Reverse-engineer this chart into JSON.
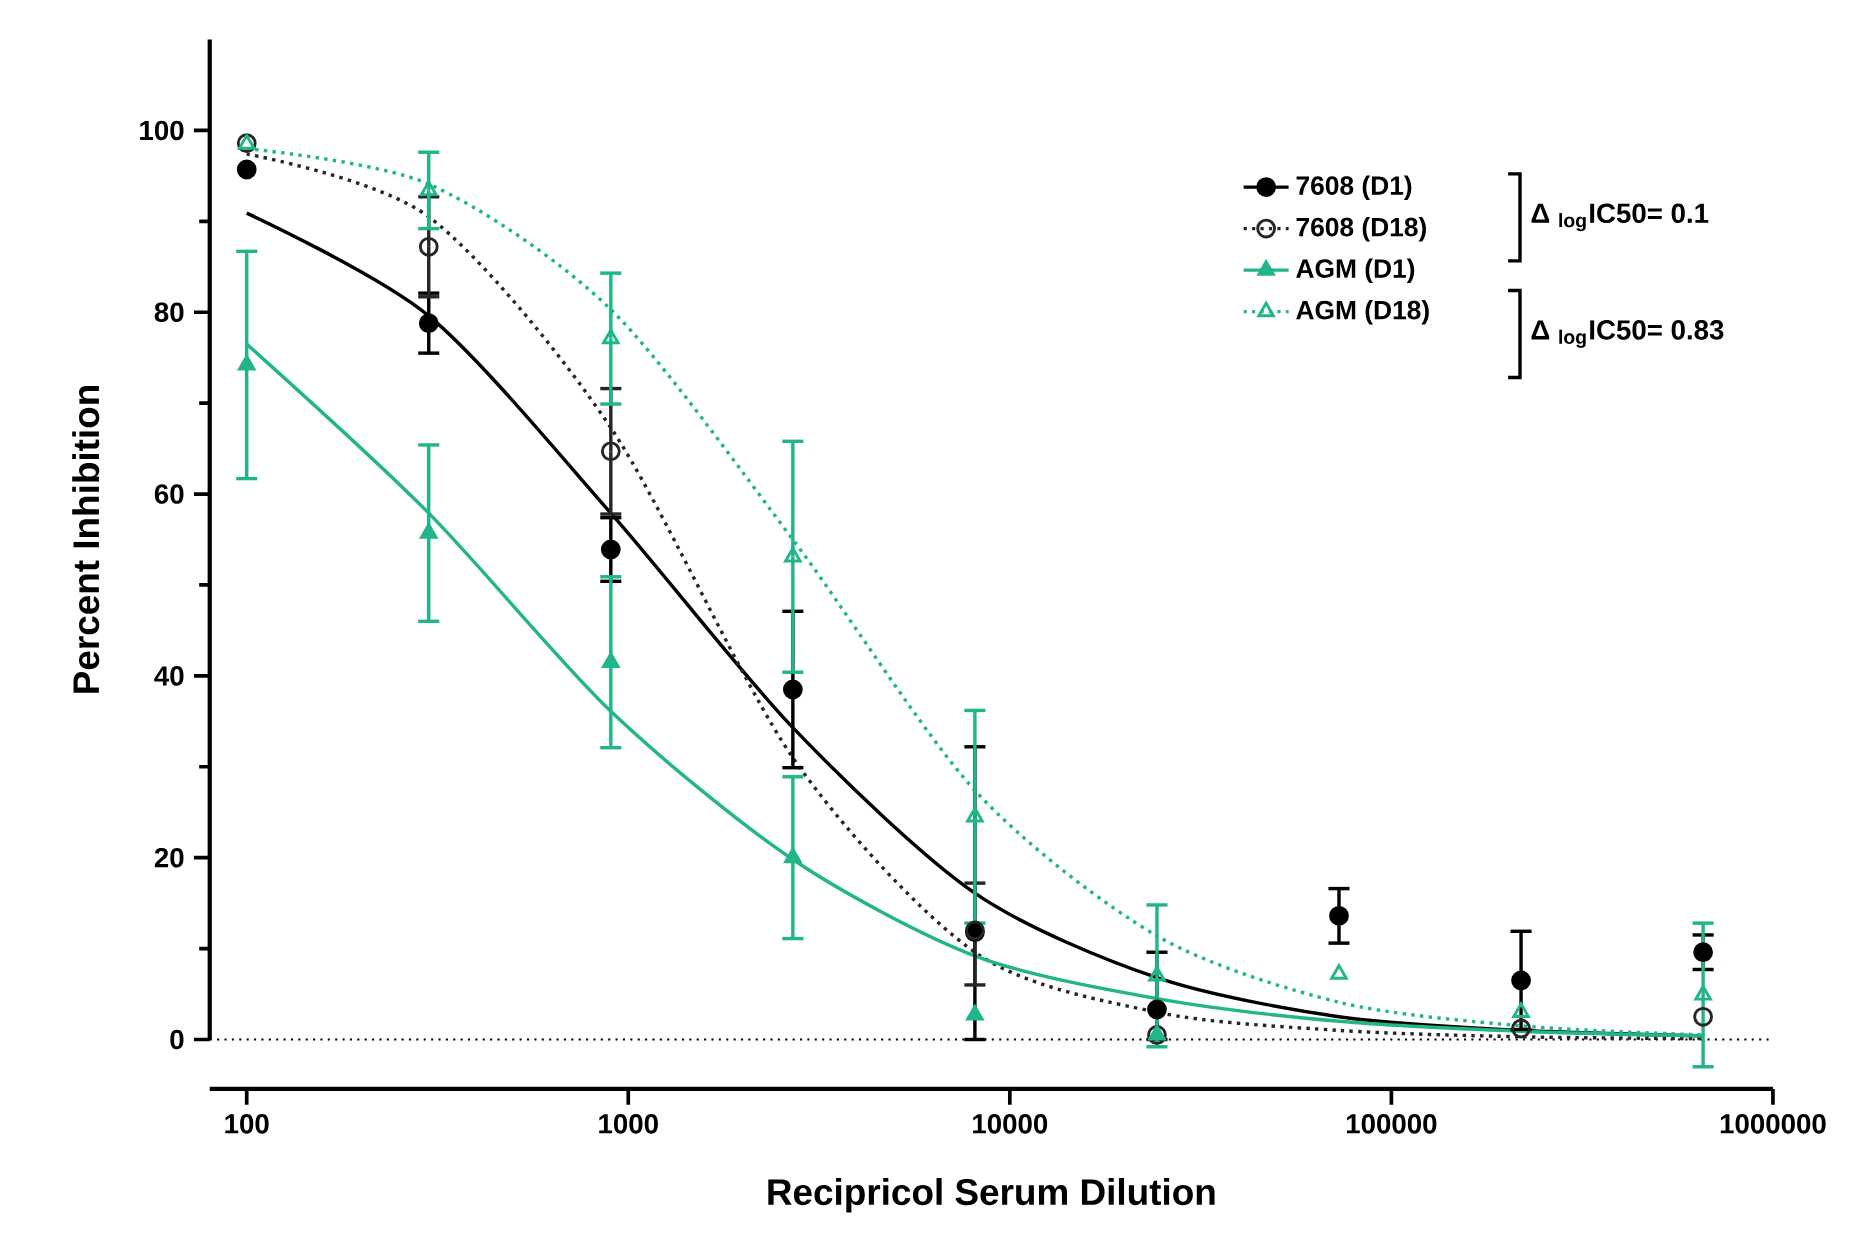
{
  "chart_data": {
    "type": "scatter",
    "xlabel": "Recipricol Serum Dilution",
    "ylabel": "Percent Inhibition",
    "x": [
      100,
      300,
      900,
      2700,
      8100,
      24300,
      72900,
      218700,
      656100
    ],
    "log": "x",
    "xlim": [
      80,
      1000000
    ],
    "xticks": [
      100,
      1000,
      10000,
      100000,
      1000000
    ],
    "ylim": [
      0,
      110
    ],
    "yticks": [
      0,
      20,
      40,
      60,
      80,
      100
    ],
    "legend": "top right",
    "ref_lines": [
      {
        "axis": "y",
        "value": 0,
        "color": "#000000",
        "line_style": "dotted"
      }
    ],
    "annotations": [
      "Δ $_{log}$IC50= 0.1",
      "Δ $_{log}$IC50= 0.83"
    ],
    "series": [
      {
        "name": "7608 (D1)",
        "color": "#000000",
        "marker": "circle",
        "line_style": "solid",
        "values": [
          95.7,
          78.8,
          53.9,
          38.5,
          11.8,
          3.3,
          13.6,
          6.5,
          9.6
        ],
        "errors": [
          null,
          3.3,
          3.5,
          8.6,
          [
            0,
            32.2
          ],
          [
            0,
            9.6
          ],
          3.0,
          5.4,
          1.9
        ]
      },
      {
        "name": "7608 (D18)",
        "color": "#262626",
        "marker": "circle-open",
        "line_style": "dotted",
        "values": [
          98.6,
          87.2,
          64.7,
          null,
          12.0,
          0.5,
          null,
          1.2,
          2.5
        ],
        "errors": [
          null,
          5.5,
          6.9,
          null,
          [
            6.0,
            17.2
          ],
          null,
          null,
          null,
          null
        ]
      },
      {
        "name": "AGM (D1)",
        "color": "#20b58a",
        "marker": "triangle",
        "line_style": "solid",
        "values": [
          74.2,
          55.7,
          41.5,
          20.0,
          2.7,
          0.5,
          null,
          null,
          null
        ],
        "errors": [
          12.5,
          9.7,
          9.4,
          8.9,
          null,
          null,
          null,
          null,
          null
        ]
      },
      {
        "name": "AGM (D18)",
        "color": "#20b58a",
        "marker": "triangle-open",
        "line_style": "dotted",
        "values": [
          98.5,
          93.4,
          77.1,
          53.1,
          24.5,
          7.0,
          7.2,
          3.0,
          4.9
        ],
        "errors": [
          null,
          4.2,
          7.2,
          12.7,
          11.7,
          7.8,
          null,
          null,
          7.9
        ]
      },
      {
        "type": "line",
        "color": "#000000",
        "line_style": "solid",
        "x": [
          100,
          300,
          900,
          2700,
          8100,
          24300,
          72900,
          218700,
          656100
        ],
        "values": [
          90.9,
          79.6,
          57.9,
          34.3,
          16.1,
          6.8,
          2.5,
          1.0,
          0.4
        ]
      },
      {
        "type": "line",
        "color": "#262626",
        "line_style": "dotted",
        "x": [
          100,
          300,
          900,
          2700,
          8100,
          24300,
          72900,
          218700,
          656100
        ],
        "values": [
          97.4,
          90.5,
          67.3,
          31.0,
          9.6,
          3.0,
          1.0,
          0.3,
          0.1
        ]
      },
      {
        "type": "line",
        "color": "#20b58a",
        "line_style": "solid",
        "x": [
          100,
          300,
          900,
          2700,
          8100,
          24300,
          72900,
          218700,
          656100
        ],
        "values": [
          76.5,
          57.9,
          36.1,
          19.8,
          9.2,
          4.5,
          2.0,
          0.9,
          0.4
        ]
      },
      {
        "type": "line",
        "color": "#20b58a",
        "line_style": "dotted",
        "x": [
          100,
          300,
          900,
          2700,
          8100,
          24300,
          72900,
          218700,
          656100
        ],
        "values": [
          98.0,
          94.1,
          80.3,
          55.0,
          27.4,
          11.4,
          4.1,
          1.5,
          0.5
        ]
      }
    ]
  }
}
